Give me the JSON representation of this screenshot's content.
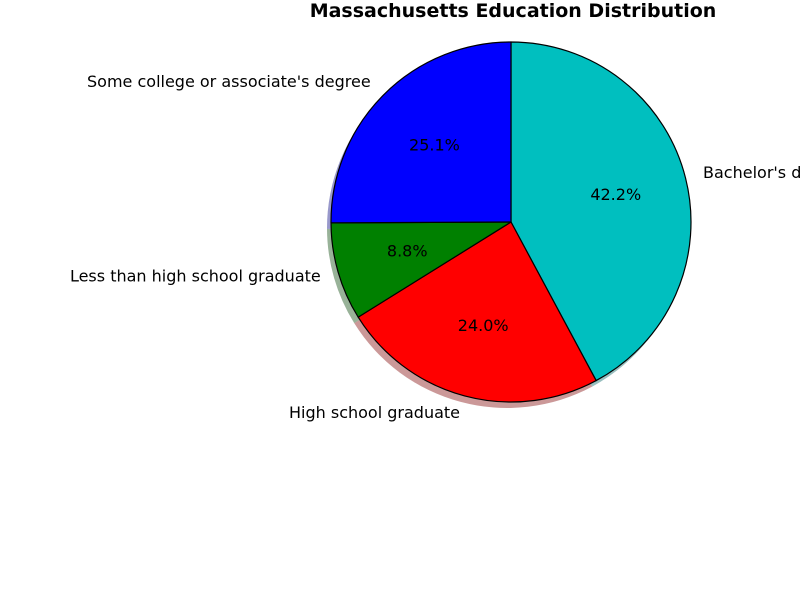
{
  "chart_data": {
    "type": "pie",
    "title": "Massachusetts Education Distribution",
    "categories": [
      "Bachelor's degree or higher",
      "High school graduate",
      "Less than high school graduate",
      "Some college or associate's degree"
    ],
    "values": [
      42.2,
      24.0,
      8.8,
      25.1
    ],
    "percent_labels": [
      "42.2%",
      "24.0%",
      "8.8%",
      "25.1%"
    ],
    "colors": [
      "#00bfbf",
      "#ff0000",
      "#008000",
      "#0000ff"
    ],
    "start_angle_deg": 90,
    "direction": "clockwise",
    "shadow": true,
    "legend": "none"
  }
}
